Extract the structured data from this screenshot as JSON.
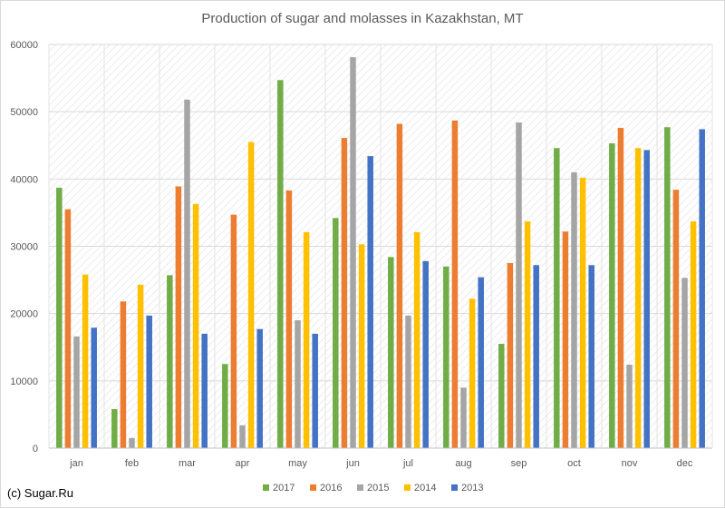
{
  "chart_data": {
    "type": "bar",
    "title": "Production of sugar and molasses in Kazakhstan, MT",
    "xlabel": "",
    "ylabel": "",
    "ylim": [
      0,
      60000
    ],
    "yticks": [
      0,
      10000,
      20000,
      30000,
      40000,
      50000,
      60000
    ],
    "grid": true,
    "legend_position": "bottom",
    "categories": [
      "jan",
      "feb",
      "mar",
      "apr",
      "may",
      "jun",
      "jul",
      "aug",
      "sep",
      "oct",
      "nov",
      "dec"
    ],
    "series": [
      {
        "name": "2017",
        "color": "#70ad47",
        "values": [
          38700,
          5800,
          25700,
          12500,
          54700,
          34200,
          28400,
          27000,
          15500,
          44600,
          45300,
          47700
        ]
      },
      {
        "name": "2016",
        "color": "#ed7d31",
        "values": [
          35500,
          21800,
          38900,
          34700,
          38300,
          46100,
          48200,
          48700,
          27500,
          32200,
          47600,
          38400
        ]
      },
      {
        "name": "2015",
        "color": "#a5a5a5",
        "values": [
          16600,
          1500,
          51800,
          3400,
          19000,
          58100,
          19700,
          9000,
          48400,
          41000,
          12400,
          25300
        ]
      },
      {
        "name": "2014",
        "color": "#ffc000",
        "values": [
          25800,
          24300,
          36300,
          45500,
          32100,
          30300,
          32100,
          22200,
          33700,
          40200,
          44600,
          33700
        ]
      },
      {
        "name": "2013",
        "color": "#4472c4",
        "values": [
          17900,
          19700,
          17000,
          17700,
          17000,
          43400,
          27800,
          25400,
          27200,
          27200,
          44300,
          47400
        ]
      }
    ]
  },
  "source_note": "(c) Sugar.Ru"
}
